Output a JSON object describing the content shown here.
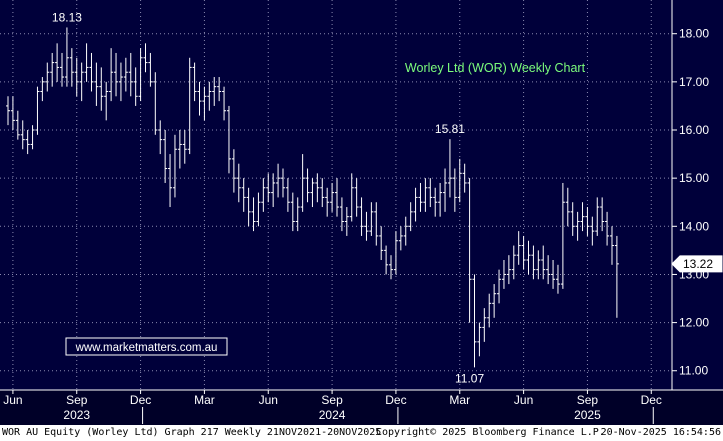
{
  "chart_data": {
    "type": "ohlc",
    "title": "Worley Ltd (WOR) Weekly Chart",
    "title_color": "#7CFC7C",
    "background_color": "#00003A",
    "bar_color": "#FFFFFF",
    "grid": true,
    "grid_style": "dotted",
    "y_axis_side": "right",
    "ylim": [
      10.6,
      18.7
    ],
    "y_ticks": [
      "11.00",
      "12.00",
      "13.00",
      "14.00",
      "15.00",
      "16.00",
      "17.00",
      "18.00"
    ],
    "x_ticks": [
      {
        "label": "Jun",
        "week": 0
      },
      {
        "label": "Sep",
        "week": 13
      },
      {
        "label": "Dec",
        "week": 26
      },
      {
        "label": "Mar",
        "week": 39
      },
      {
        "label": "Jun",
        "week": 52
      },
      {
        "label": "Sep",
        "week": 65
      },
      {
        "label": "Dec",
        "week": 78
      },
      {
        "label": "Mar",
        "week": 91
      },
      {
        "label": "Jun",
        "week": 104
      },
      {
        "label": "Sep",
        "week": 117
      },
      {
        "label": "Dec",
        "week": 130
      }
    ],
    "year_labels": [
      {
        "label": "2023",
        "week": 13
      },
      {
        "label": "2024",
        "week": 65
      },
      {
        "label": "2025",
        "week": 117
      }
    ],
    "last_price": {
      "label": "13.22",
      "value": 13.22
    },
    "annotations": [
      {
        "text": "18.13",
        "week": 11,
        "value": 18.13,
        "position": "above"
      },
      {
        "text": "15.81",
        "week": 89,
        "value": 15.81,
        "position": "above"
      },
      {
        "text": "11.07",
        "week": 93,
        "value": 11.07,
        "position": "below"
      }
    ],
    "x_range_weeks": [
      -1,
      133
    ],
    "bars": [
      [
        -1,
        16.5,
        16.7,
        16.1,
        16.4
      ],
      [
        0,
        16.4,
        16.7,
        16.0,
        16.2
      ],
      [
        1,
        16.2,
        16.4,
        15.8,
        15.9
      ],
      [
        2,
        15.9,
        16.2,
        15.6,
        15.8
      ],
      [
        3,
        15.8,
        16.0,
        15.5,
        15.7
      ],
      [
        4,
        15.7,
        16.1,
        15.6,
        16.0
      ],
      [
        5,
        16.0,
        16.9,
        15.9,
        16.8
      ],
      [
        6,
        16.8,
        17.1,
        16.6,
        17.0
      ],
      [
        7,
        17.0,
        17.4,
        16.8,
        17.2
      ],
      [
        8,
        17.2,
        17.6,
        16.9,
        17.4
      ],
      [
        9,
        17.4,
        17.8,
        17.0,
        17.3
      ],
      [
        10,
        17.3,
        17.6,
        16.9,
        17.1
      ],
      [
        11,
        17.1,
        18.13,
        16.9,
        17.5
      ],
      [
        12,
        17.5,
        17.7,
        16.9,
        17.2
      ],
      [
        13,
        17.2,
        17.5,
        16.7,
        17.0
      ],
      [
        14,
        17.0,
        17.4,
        16.6,
        17.2
      ],
      [
        15,
        17.2,
        17.8,
        17.0,
        17.3
      ],
      [
        16,
        17.3,
        17.6,
        16.8,
        17.0
      ],
      [
        17,
        17.0,
        17.4,
        16.5,
        16.9
      ],
      [
        18,
        16.9,
        17.3,
        16.4,
        16.7
      ],
      [
        19,
        16.7,
        17.0,
        16.2,
        16.8
      ],
      [
        20,
        16.8,
        17.7,
        16.6,
        17.2
      ],
      [
        21,
        17.2,
        17.6,
        16.7,
        17.0
      ],
      [
        22,
        17.0,
        17.4,
        16.6,
        17.1
      ],
      [
        23,
        17.1,
        17.5,
        16.8,
        17.2
      ],
      [
        24,
        17.2,
        17.6,
        16.7,
        17.0
      ],
      [
        25,
        17.0,
        17.3,
        16.5,
        16.7
      ],
      [
        26,
        16.7,
        17.7,
        16.6,
        17.5
      ],
      [
        27,
        17.5,
        17.8,
        17.2,
        17.4
      ],
      [
        28,
        17.4,
        17.6,
        16.9,
        17.0
      ],
      [
        29,
        17.0,
        17.2,
        15.9,
        16.0
      ],
      [
        30,
        16.0,
        16.2,
        15.5,
        15.8
      ],
      [
        31,
        15.8,
        16.0,
        14.9,
        15.2
      ],
      [
        32,
        15.2,
        15.5,
        14.4,
        14.8
      ],
      [
        33,
        14.8,
        15.9,
        14.6,
        15.6
      ],
      [
        34,
        15.6,
        16.0,
        15.2,
        15.7
      ],
      [
        35,
        15.7,
        16.0,
        15.3,
        15.6
      ],
      [
        36,
        15.6,
        17.5,
        15.5,
        17.3
      ],
      [
        37,
        17.3,
        17.4,
        16.6,
        16.8
      ],
      [
        38,
        16.8,
        17.0,
        16.3,
        16.6
      ],
      [
        39,
        16.6,
        16.9,
        16.2,
        16.7
      ],
      [
        40,
        16.7,
        17.0,
        16.4,
        16.8
      ],
      [
        41,
        16.8,
        17.1,
        16.5,
        16.9
      ],
      [
        42,
        16.9,
        17.1,
        16.6,
        16.8
      ],
      [
        43,
        16.8,
        16.9,
        16.2,
        16.4
      ],
      [
        44,
        16.4,
        16.5,
        15.1,
        15.4
      ],
      [
        45,
        15.4,
        15.6,
        14.7,
        15.0
      ],
      [
        46,
        15.0,
        15.3,
        14.5,
        14.8
      ],
      [
        47,
        14.8,
        15.0,
        14.3,
        14.6
      ],
      [
        48,
        14.6,
        14.8,
        14.0,
        14.3
      ],
      [
        49,
        14.3,
        14.6,
        13.9,
        14.1
      ],
      [
        50,
        14.1,
        14.7,
        14.0,
        14.5
      ],
      [
        51,
        14.5,
        15.0,
        14.3,
        14.8
      ],
      [
        52,
        14.8,
        15.1,
        14.5,
        14.7
      ],
      [
        53,
        14.7,
        15.1,
        14.4,
        14.9
      ],
      [
        54,
        14.9,
        15.3,
        14.6,
        15.0
      ],
      [
        55,
        15.0,
        15.2,
        14.6,
        14.8
      ],
      [
        56,
        14.8,
        15.0,
        14.3,
        14.5
      ],
      [
        57,
        14.5,
        14.7,
        13.9,
        14.1
      ],
      [
        58,
        14.1,
        14.6,
        13.9,
        14.4
      ],
      [
        59,
        14.4,
        15.5,
        14.3,
        15.0
      ],
      [
        60,
        15.0,
        15.2,
        14.5,
        14.7
      ],
      [
        61,
        14.7,
        15.0,
        14.4,
        14.9
      ],
      [
        62,
        14.9,
        15.1,
        14.5,
        14.8
      ],
      [
        63,
        14.8,
        15.0,
        14.4,
        14.6
      ],
      [
        64,
        14.6,
        14.8,
        14.2,
        14.5
      ],
      [
        65,
        14.5,
        14.9,
        14.3,
        14.7
      ],
      [
        66,
        14.7,
        15.0,
        14.2,
        14.4
      ],
      [
        67,
        14.4,
        14.6,
        13.9,
        14.1
      ],
      [
        68,
        14.1,
        14.4,
        13.8,
        14.2
      ],
      [
        69,
        14.2,
        15.1,
        14.1,
        14.8
      ],
      [
        70,
        14.8,
        15.0,
        14.2,
        14.4
      ],
      [
        71,
        14.4,
        14.6,
        13.8,
        14.0
      ],
      [
        72,
        14.0,
        14.3,
        13.7,
        13.9
      ],
      [
        73,
        13.9,
        14.5,
        13.8,
        14.3
      ],
      [
        74,
        14.3,
        14.5,
        13.6,
        13.8
      ],
      [
        75,
        13.8,
        14.0,
        13.3,
        13.5
      ],
      [
        76,
        13.5,
        13.6,
        13.0,
        13.2
      ],
      [
        77,
        13.2,
        13.4,
        12.9,
        13.1
      ],
      [
        78,
        13.1,
        13.9,
        13.0,
        13.7
      ],
      [
        79,
        13.7,
        14.0,
        13.5,
        13.8
      ],
      [
        80,
        13.8,
        14.2,
        13.6,
        14.0
      ],
      [
        81,
        14.0,
        14.5,
        13.9,
        14.3
      ],
      [
        82,
        14.3,
        14.8,
        14.1,
        14.6
      ],
      [
        83,
        14.6,
        14.9,
        14.3,
        14.5
      ],
      [
        84,
        14.5,
        15.0,
        14.3,
        14.8
      ],
      [
        85,
        14.8,
        15.0,
        14.4,
        14.6
      ],
      [
        86,
        14.6,
        14.8,
        14.2,
        14.5
      ],
      [
        87,
        14.5,
        14.9,
        14.2,
        14.7
      ],
      [
        88,
        14.7,
        15.2,
        14.3,
        14.9
      ],
      [
        89,
        14.9,
        15.81,
        14.6,
        15.0
      ],
      [
        90,
        15.0,
        15.2,
        14.3,
        14.6
      ],
      [
        91,
        14.6,
        15.4,
        14.5,
        15.1
      ],
      [
        92,
        15.1,
        15.3,
        14.7,
        14.9
      ],
      [
        93,
        14.9,
        15.0,
        12.0,
        12.9
      ],
      [
        94,
        12.9,
        13.0,
        11.07,
        11.6
      ],
      [
        95,
        11.6,
        12.0,
        11.3,
        11.9
      ],
      [
        96,
        11.9,
        12.3,
        11.6,
        12.1
      ],
      [
        97,
        12.1,
        12.6,
        11.9,
        12.4
      ],
      [
        98,
        12.4,
        12.8,
        12.1,
        12.6
      ],
      [
        99,
        12.6,
        13.1,
        12.4,
        12.9
      ],
      [
        100,
        12.9,
        13.3,
        12.7,
        13.0
      ],
      [
        101,
        13.0,
        13.4,
        12.8,
        13.1
      ],
      [
        102,
        13.1,
        13.6,
        12.9,
        13.4
      ],
      [
        103,
        13.4,
        13.9,
        13.2,
        13.6
      ],
      [
        104,
        13.6,
        13.8,
        13.1,
        13.3
      ],
      [
        105,
        13.3,
        13.7,
        13.0,
        13.4
      ],
      [
        106,
        13.4,
        13.6,
        12.9,
        13.1
      ],
      [
        107,
        13.1,
        13.5,
        12.9,
        13.3
      ],
      [
        108,
        13.3,
        13.6,
        12.9,
        13.1
      ],
      [
        109,
        13.1,
        13.4,
        12.8,
        13.0
      ],
      [
        110,
        13.0,
        13.3,
        12.7,
        12.9
      ],
      [
        111,
        12.9,
        13.2,
        12.6,
        12.8
      ],
      [
        112,
        12.8,
        14.9,
        12.7,
        14.5
      ],
      [
        113,
        14.5,
        14.8,
        14.0,
        14.3
      ],
      [
        114,
        14.3,
        14.5,
        13.8,
        14.0
      ],
      [
        115,
        14.0,
        14.3,
        13.7,
        14.1
      ],
      [
        116,
        14.1,
        14.5,
        13.9,
        14.2
      ],
      [
        117,
        14.2,
        14.4,
        13.8,
        14.0
      ],
      [
        118,
        14.0,
        14.2,
        13.6,
        13.9
      ],
      [
        119,
        13.9,
        14.6,
        13.8,
        14.4
      ],
      [
        120,
        14.4,
        14.6,
        13.9,
        14.1
      ],
      [
        121,
        14.1,
        14.3,
        13.6,
        13.8
      ],
      [
        122,
        13.8,
        14.0,
        13.2,
        13.6
      ],
      [
        123,
        13.6,
        13.8,
        12.1,
        13.22
      ]
    ]
  },
  "website": "www.marketmatters.com.au",
  "footer": {
    "left": "WOR AU Equity (Worley Ltd) Graph 217 Weekly 21NOV2021-20NOV2025",
    "center": "Copyright© 2025 Bloomberg Finance L.P.",
    "right": "20-Nov-2025 16:54:56"
  }
}
